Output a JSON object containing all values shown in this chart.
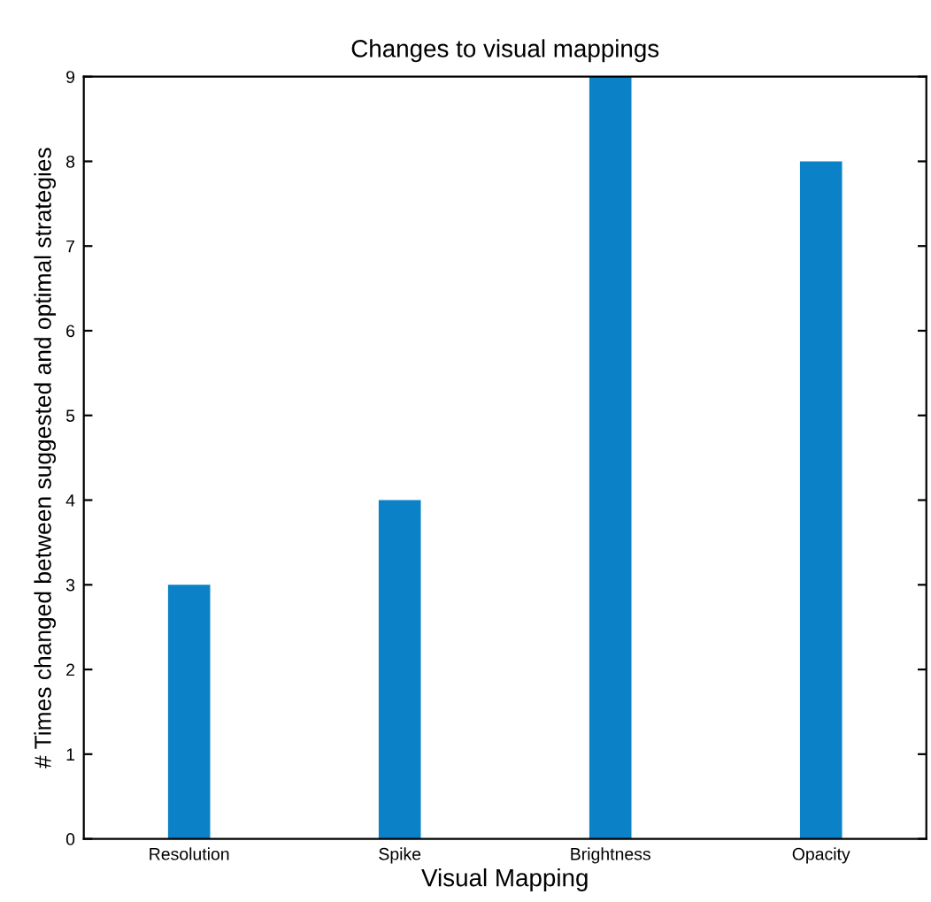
{
  "chart_data": {
    "type": "bar",
    "title": "Changes to visual mappings",
    "xlabel": "Visual Mapping",
    "ylabel": "# Times changed between suggested and optimal strategies",
    "categories": [
      "Resolution",
      "Spike",
      "Brightness",
      "Opacity"
    ],
    "values": [
      3,
      4,
      9,
      8
    ],
    "color": "#0b82c8",
    "ylim": [
      0,
      9
    ],
    "yticks": [
      0,
      1,
      2,
      3,
      4,
      5,
      6,
      7,
      8,
      9
    ],
    "grid": false
  }
}
